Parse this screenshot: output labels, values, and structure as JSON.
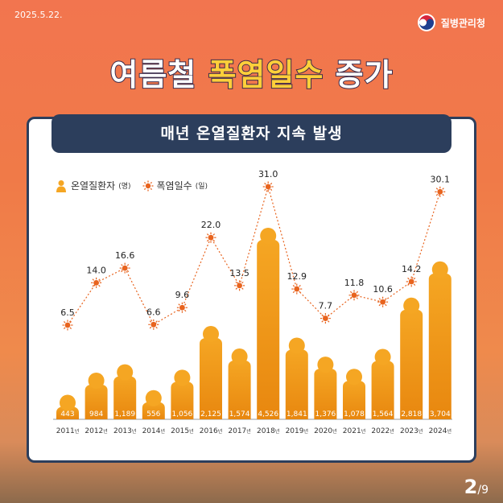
{
  "header": {
    "date": "2025.5.22.",
    "org": "질병관리청",
    "headline_part1": "여름철",
    "headline_part2": "폭염일수",
    "headline_part3": "증가",
    "subtitle": "매년 온열질환자 지속 발생"
  },
  "colors": {
    "background": "#f07a48",
    "panel_border": "#2c3e5c",
    "bar": "#f5a623",
    "bar_dark": "#e8870f",
    "heat_dot": "#e8641f",
    "headline_yellow": "#ffcf3a"
  },
  "legend": {
    "patients_label": "온열질환자",
    "patients_unit": "(명)",
    "heatdays_label": "폭염일수",
    "heatdays_unit": "(일)",
    "patients_icon": "person-icon",
    "heatdays_icon": "sun-icon"
  },
  "chart_data": {
    "type": "bar",
    "year_suffix": "년",
    "categories": [
      "2011",
      "2012",
      "2013",
      "2014",
      "2015",
      "2016",
      "2017",
      "2018",
      "2019",
      "2020",
      "2021",
      "2022",
      "2023",
      "2024"
    ],
    "series": [
      {
        "name": "온열질환자(명)",
        "type": "bar",
        "values": [
          443,
          984,
          1189,
          556,
          1056,
          2125,
          1574,
          4526,
          1841,
          1376,
          1078,
          1564,
          2818,
          3704
        ]
      },
      {
        "name": "폭염일수(일)",
        "type": "line",
        "values": [
          6.5,
          14.0,
          16.6,
          6.6,
          9.6,
          22.0,
          13.5,
          31.0,
          12.9,
          7.7,
          11.8,
          10.6,
          14.2,
          30.1
        ]
      }
    ],
    "labels_bar": [
      "443",
      "984",
      "1,189",
      "556",
      "1,056",
      "2,125",
      "1,574",
      "4,526",
      "1,841",
      "1,376",
      "1,078",
      "1,564",
      "2,818",
      "3,704"
    ],
    "labels_line": [
      "6.5",
      "14.0",
      "16.6",
      "6.6",
      "9.6",
      "22.0",
      "13.5",
      "31.0",
      "12.9",
      "7.7",
      "11.8",
      "10.6",
      "14.2",
      "30.1"
    ]
  },
  "footer": {
    "page_current": "2",
    "page_total": "/9"
  }
}
